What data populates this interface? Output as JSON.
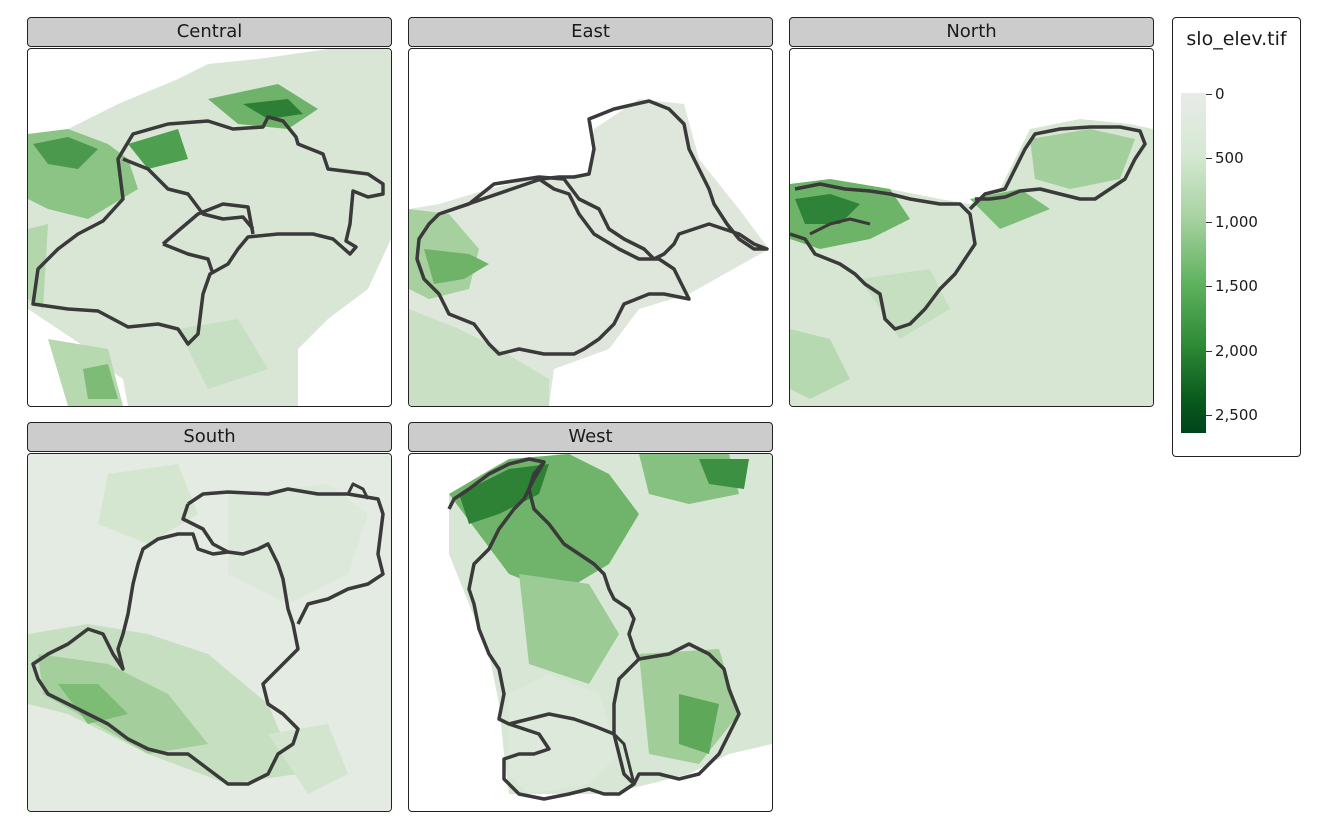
{
  "facets": [
    {
      "id": "central",
      "label": "Central"
    },
    {
      "id": "east",
      "label": "East"
    },
    {
      "id": "north",
      "label": "North"
    },
    {
      "id": "south",
      "label": "South"
    },
    {
      "id": "west",
      "label": "West"
    }
  ],
  "legend": {
    "title": "slo_elev.tif",
    "ticks": [
      "0",
      "500",
      "1,000",
      "1,500",
      "2,000",
      "2,500"
    ],
    "tick_values": [
      0,
      500,
      1000,
      1500,
      2000,
      2500
    ],
    "range": [
      0,
      2650
    ],
    "palette": [
      "#e8ece8",
      "#d6e8d3",
      "#a9d3a3",
      "#5fb25e",
      "#2e8b36",
      "#0a5a1c",
      "#00441b"
    ]
  },
  "colors": {
    "outline": "#3a3a3a",
    "strip_bg": "#cccccc",
    "land_light": "#dde8db"
  }
}
